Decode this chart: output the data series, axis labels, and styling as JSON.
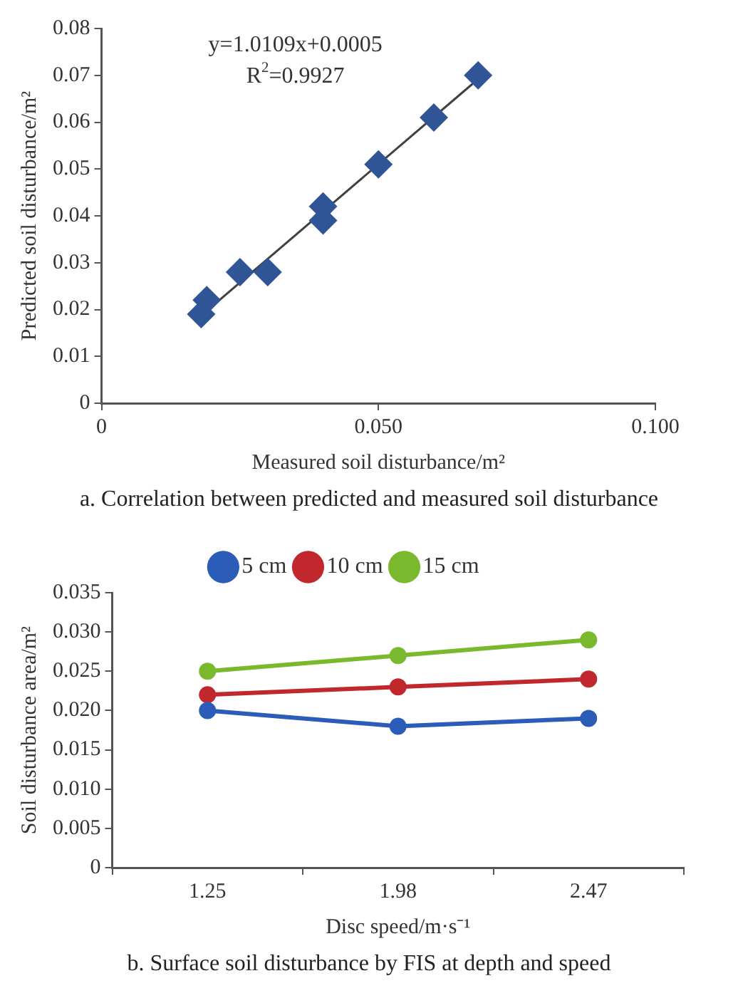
{
  "chart_data": [
    {
      "type": "scatter",
      "title": "a. Correlation between predicted and measured soil disturbance",
      "xlabel": "Measured soil disturbance/m²",
      "ylabel": "Predicted soil disturbance/m²",
      "x": [
        0.018,
        0.019,
        0.025,
        0.03,
        0.04,
        0.04,
        0.05,
        0.06,
        0.068
      ],
      "series": [
        {
          "color": "#2f5597",
          "values": [
            0.019,
            0.022,
            0.028,
            0.028,
            0.042,
            0.039,
            0.051,
            0.061,
            0.07
          ]
        },
        {
          "type": "line",
          "color": "#404040",
          "marker": "none",
          "x": [
            0.018,
            0.068
          ],
          "values": [
            0.0187,
            0.0692
          ]
        }
      ],
      "annotations": [
        "y=1.0109x+0.0005",
        "R$^{2}$=0.9927"
      ],
      "xlim": [
        0,
        0.1
      ],
      "xticks": [
        0,
        {
          "value": 0.05,
          "label": "0.050"
        },
        {
          "value": 0.1,
          "label": "0.100"
        }
      ],
      "ylim": [
        0,
        0.08
      ],
      "yticks": [
        0,
        0.01,
        0.02,
        0.03,
        0.04,
        0.05,
        0.06,
        0.07,
        0.08
      ],
      "marker": "diamond",
      "grid": false,
      "legend": false
    },
    {
      "type": "line",
      "title": "b. Surface soil disturbance by FIS at depth and speed",
      "xlabel": "Disc speed/m·s⁻¹",
      "ylabel": "Soil disturbance area/m²",
      "categories": [
        "1.25",
        "1.98",
        "2.47"
      ],
      "series": [
        {
          "name": "5 cm",
          "color": "#2a5cb8",
          "values": [
            0.02,
            0.018,
            0.019
          ]
        },
        {
          "name": "10 cm",
          "color": "#c0282d",
          "values": [
            0.022,
            0.023,
            0.024
          ]
        },
        {
          "name": "15 cm",
          "color": "#7ab82e",
          "values": [
            0.025,
            0.027,
            0.029
          ]
        }
      ],
      "ylim": [
        0,
        0.035
      ],
      "yticks": [
        0,
        {
          "value": 0.005,
          "label": "0.005"
        },
        {
          "value": 0.01,
          "label": "0.010"
        },
        {
          "value": 0.015,
          "label": "0.015"
        },
        {
          "value": 0.02,
          "label": "0.020"
        },
        {
          "value": 0.025,
          "label": "0.025"
        },
        {
          "value": 0.03,
          "label": "0.030"
        },
        {
          "value": 0.035,
          "label": "0.035"
        }
      ],
      "marker": "circle",
      "grid": false,
      "legend": "top"
    }
  ]
}
